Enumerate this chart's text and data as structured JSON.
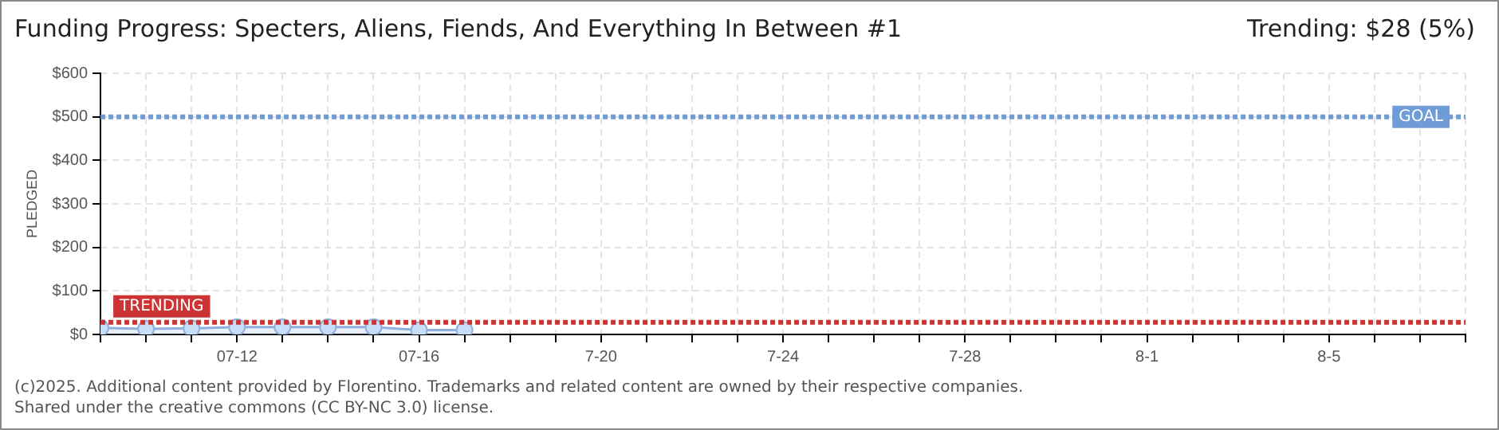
{
  "chart_data": {
    "type": "area",
    "title": "Funding Progress: Specters, Aliens, Fiends, And Everything In Between #1",
    "subtitle": "Trending: $28 (5%)",
    "ylabel": "PLEDGED",
    "x": [
      "--07-09",
      "--07-10",
      "--07-11",
      "--07-12",
      "--07-13",
      "--07-14",
      "--07-15",
      "--07-16",
      "--07-17"
    ],
    "series": [
      {
        "color": "#8fb0dc",
        "values": [
          15,
          13,
          14,
          17,
          17,
          17,
          17,
          10,
          10
        ]
      }
    ],
    "xlim": [
      "--07-09",
      "--08-08"
    ],
    "xticks": [
      {
        "value": "--07-09",
        "label": null
      },
      {
        "value": "--07-10",
        "label": null
      },
      {
        "value": "--07-11",
        "label": null
      },
      {
        "value": "--07-12",
        "label": "07-12"
      },
      {
        "value": "--07-13",
        "label": null
      },
      {
        "value": "--07-14",
        "label": null
      },
      {
        "value": "--07-15",
        "label": null
      },
      {
        "value": "--07-16",
        "label": "07-16"
      },
      {
        "value": "--07-17",
        "label": null
      },
      {
        "value": "--07-18",
        "label": null
      },
      {
        "value": "--07-19",
        "label": null
      },
      {
        "value": "--07-20",
        "label": "7-20"
      },
      {
        "value": "--07-21",
        "label": null
      },
      {
        "value": "--07-22",
        "label": null
      },
      {
        "value": "--07-23",
        "label": null
      },
      {
        "value": "--07-24",
        "label": "7-24"
      },
      {
        "value": "--07-25",
        "label": null
      },
      {
        "value": "--07-26",
        "label": null
      },
      {
        "value": "--07-27",
        "label": null
      },
      {
        "value": "--07-28",
        "label": "7-28"
      },
      {
        "value": "--07-29",
        "label": null
      },
      {
        "value": "--07-30",
        "label": null
      },
      {
        "value": "--07-31",
        "label": null
      },
      {
        "value": "--08-01",
        "label": "8-1"
      },
      {
        "value": "--08-02",
        "label": null
      },
      {
        "value": "--08-03",
        "label": null
      },
      {
        "value": "--08-04",
        "label": null
      },
      {
        "value": "--08-05",
        "label": "8-5"
      },
      {
        "value": "--08-06",
        "label": null
      },
      {
        "value": "--08-07",
        "label": null
      },
      {
        "value": "--08-08",
        "label": null
      }
    ],
    "ylim": [
      0,
      600
    ],
    "yticks": [
      {
        "value": 0,
        "label": "$0"
      },
      {
        "value": 100,
        "label": "$100"
      },
      {
        "value": 200,
        "label": "$200"
      },
      {
        "value": 300,
        "label": "$300"
      },
      {
        "value": 400,
        "label": "$400"
      },
      {
        "value": 500,
        "label": "$500"
      },
      {
        "value": 600,
        "label": "$600"
      }
    ],
    "ref_lines": [
      {
        "axis": "y",
        "value": 500,
        "label": "GOAL",
        "color": "#6f9bd6",
        "line_style": "dotted"
      },
      {
        "axis": "y",
        "value": 28,
        "label": "TRENDING",
        "color": "#cc3333",
        "line_style": "dotted"
      }
    ],
    "grid": true,
    "marker": "circle",
    "line_style": "solid",
    "annotations": [
      "(c)2025. Additional content provided by Florentino. Trademarks and related content are owned by their respective companies.",
      "Shared under the creative commons (CC BY-NC 3.0) license."
    ]
  }
}
